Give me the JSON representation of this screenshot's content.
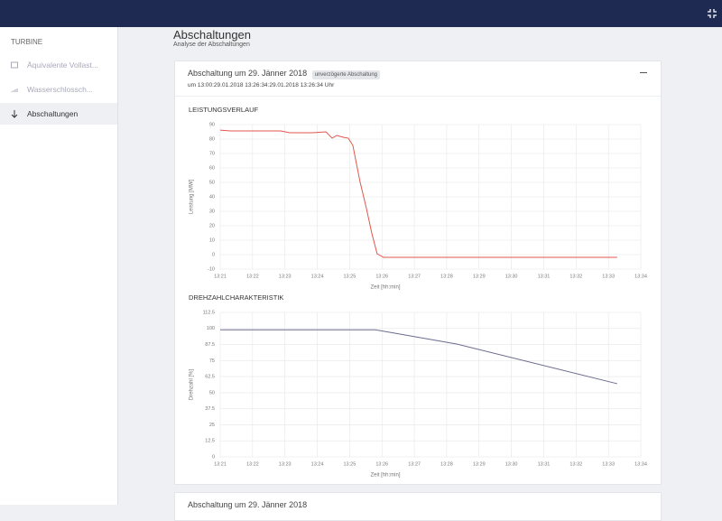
{
  "sidebar": {
    "section": "TURBINE",
    "items": [
      "Äquivalente Vollast...",
      "Wasserschlossch...",
      "Abschaltungen"
    ]
  },
  "page": {
    "title": "Abschaltungen",
    "subtitle": "Analyse der Abschaltungen"
  },
  "card": {
    "title": "Abschaltung um 29. Jänner 2018",
    "badge": "unverzögerte Abschaltung",
    "subtitle": "um 13:00:29.01.2018 13:26:34:29.01.2018 13:26:34 Uhr",
    "charts": [
      {
        "type": "line",
        "title": "LEISTUNGSVERLAUF",
        "x_label": "Zeit [hh:min]",
        "y_label": "Leistung [MW]",
        "color": "#e0574c",
        "x": [
          21,
          21.33,
          22.87,
          23.15,
          23.85,
          24.27,
          24.46,
          24.6,
          24.82,
          24.96,
          25.1,
          25.32,
          25.52,
          25.69,
          25.85,
          26.05,
          33.27
        ],
        "values": [
          86.2,
          85.6,
          85.6,
          84.4,
          84.4,
          85,
          80.6,
          82.5,
          81.2,
          80.6,
          75.6,
          50.6,
          31.9,
          14.4,
          0.6,
          -1.9,
          -1.9
        ],
        "xlim": [
          21,
          34
        ],
        "xticks": [
          {
            "value": 21,
            "label": "13:21"
          },
          {
            "value": 22,
            "label": "13:22"
          },
          {
            "value": 23,
            "label": "13:23"
          },
          {
            "value": 24,
            "label": "13:24"
          },
          {
            "value": 25,
            "label": "13:25"
          },
          {
            "value": 26,
            "label": "13:26"
          },
          {
            "value": 27,
            "label": "13:27"
          },
          {
            "value": 28,
            "label": "13:28"
          },
          {
            "value": 29,
            "label": "13:29"
          },
          {
            "value": 30,
            "label": "13:30"
          },
          {
            "value": 31,
            "label": "13:31"
          },
          {
            "value": 32,
            "label": "13:32"
          },
          {
            "value": 33,
            "label": "13:33"
          },
          {
            "value": 34,
            "label": "13:34"
          }
        ],
        "ylim": [
          -10,
          90
        ],
        "yticks": [
          -10,
          0,
          10,
          20,
          30,
          40,
          50,
          60,
          70,
          80,
          90
        ],
        "grid": true
      },
      {
        "type": "line",
        "title": "DREHZAHLCHARAKTERISTIK",
        "x_label": "Zeit [hh:min]",
        "y_label": "Drehzahl [%]",
        "color": "#6b6c8e",
        "x": [
          21,
          25.8,
          28.31,
          33.27
        ],
        "values": [
          99,
          99,
          87.9,
          57
        ],
        "xlim": [
          21,
          34
        ],
        "xticks": [
          {
            "value": 21,
            "label": "13:21"
          },
          {
            "value": 22,
            "label": "13:22"
          },
          {
            "value": 23,
            "label": "13:23"
          },
          {
            "value": 24,
            "label": "13:24"
          },
          {
            "value": 25,
            "label": "13:25"
          },
          {
            "value": 26,
            "label": "13:26"
          },
          {
            "value": 27,
            "label": "13:27"
          },
          {
            "value": 28,
            "label": "13:28"
          },
          {
            "value": 29,
            "label": "13:29"
          },
          {
            "value": 30,
            "label": "13:30"
          },
          {
            "value": 31,
            "label": "13:31"
          },
          {
            "value": 32,
            "label": "13:32"
          },
          {
            "value": 33,
            "label": "13:33"
          },
          {
            "value": 34,
            "label": "13:34"
          }
        ],
        "ylim": [
          0,
          112.5
        ],
        "yticks": [
          0,
          12.5,
          25,
          37.5,
          50,
          62.5,
          75,
          87.5,
          100,
          112.5
        ],
        "grid": true
      }
    ]
  },
  "next_card": {
    "title": "Abschaltung um 29. Jänner 2018"
  }
}
